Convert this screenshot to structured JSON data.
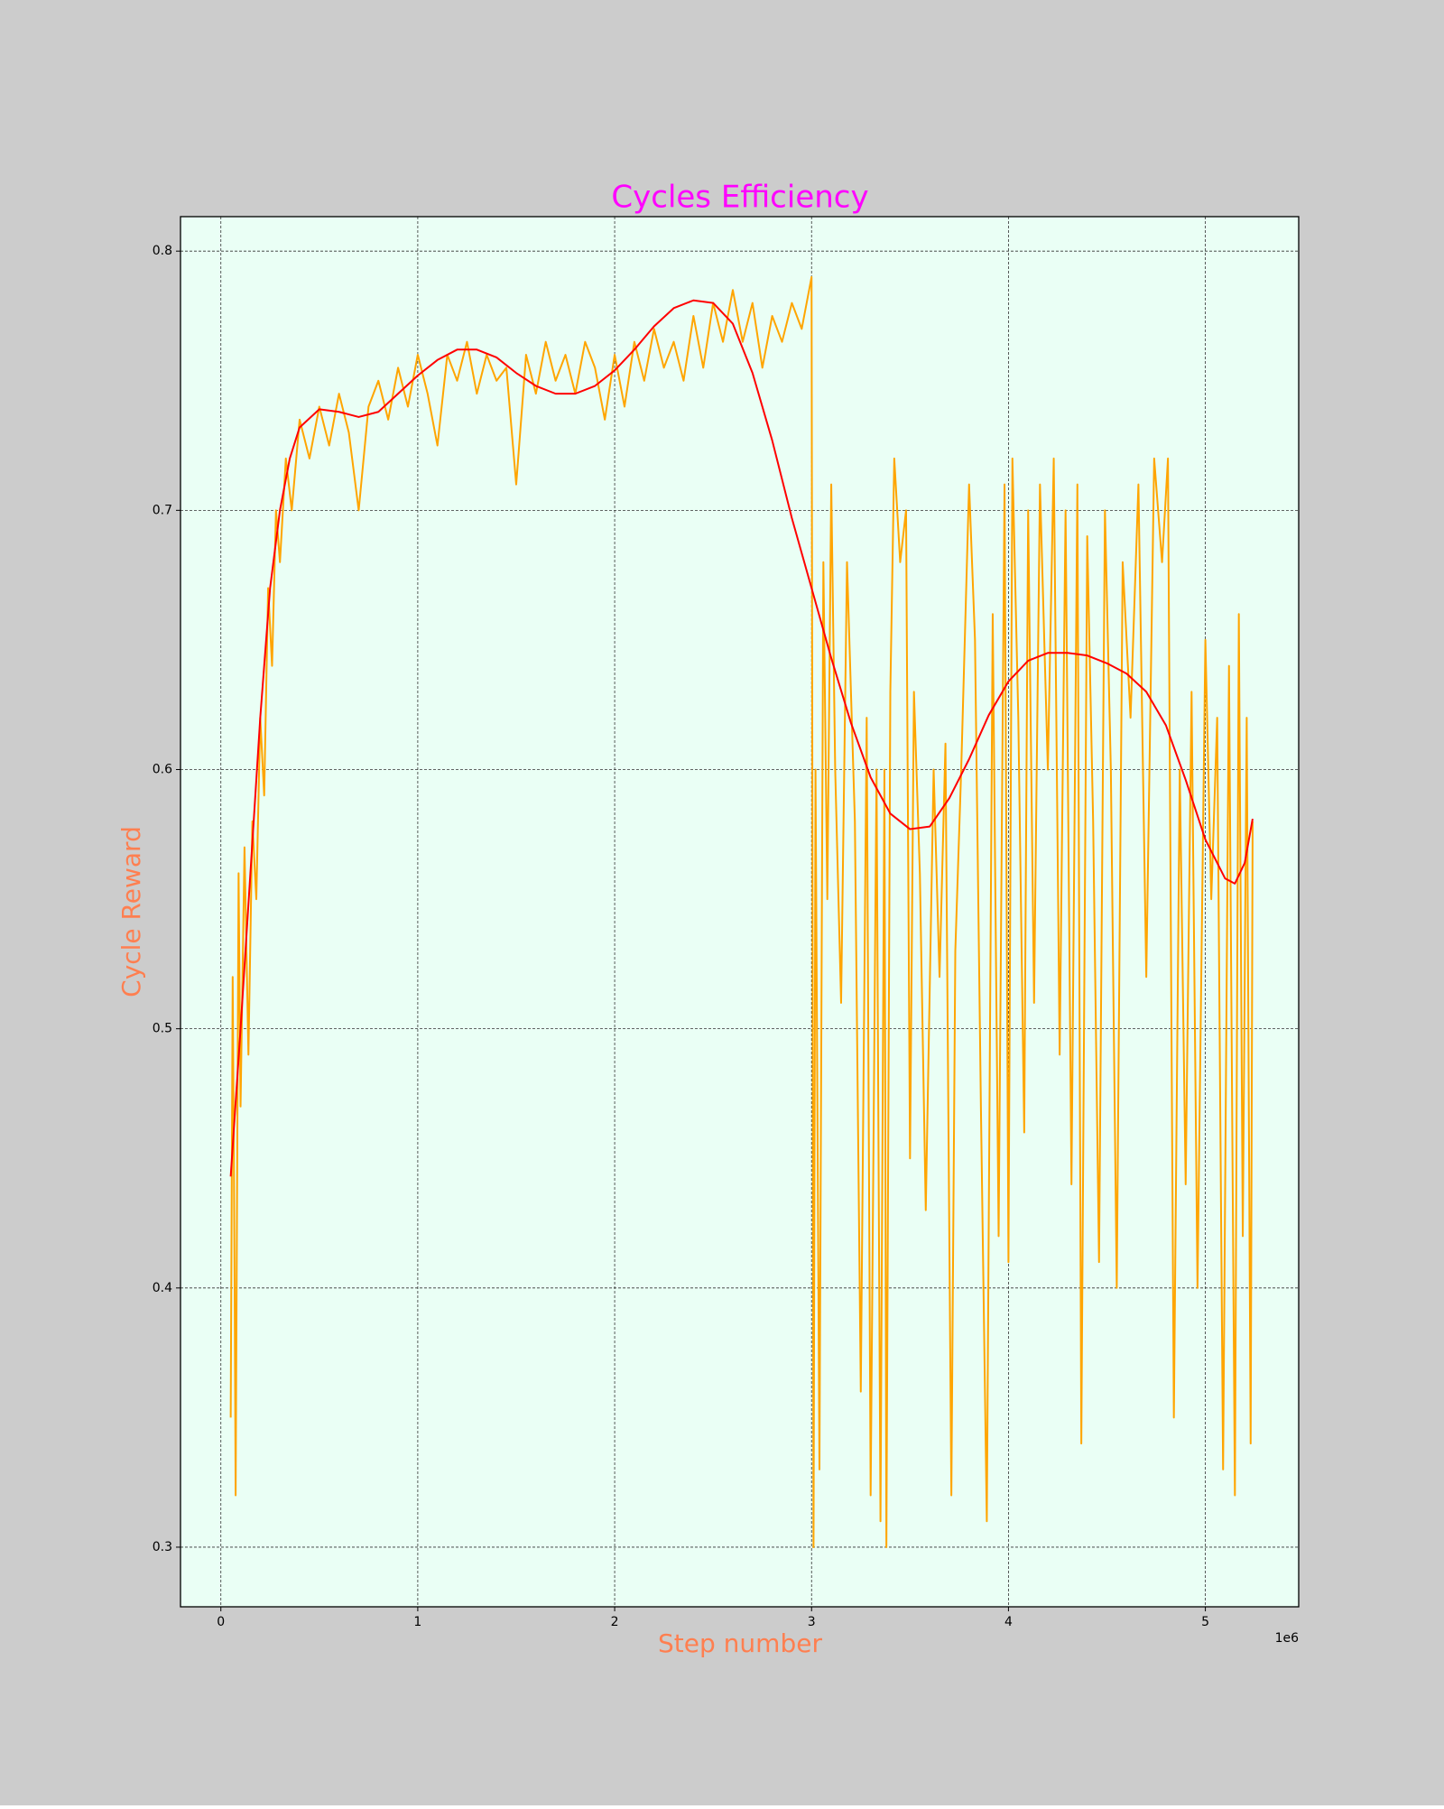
{
  "chart_data": {
    "type": "line",
    "title": "Cycles Efficiency",
    "x_label": "Step number",
    "y_label": "Cycle Reward",
    "x_offset_label": "1e6",
    "xlim": [
      -0.205,
      5.474
    ],
    "xticks": [
      0,
      1,
      2,
      3,
      4,
      5
    ],
    "ylim": [
      0.277,
      0.8133
    ],
    "yticks": [
      0.3,
      0.4,
      0.5,
      0.6,
      0.7,
      0.8
    ],
    "grid": true,
    "background": "#cccccc",
    "plot_background": "#eafff5",
    "title_color": "#ff00ff",
    "label_color": "#ff7f50",
    "series": [
      {
        "color": "#ffa500",
        "x": [
          0.05,
          0.06,
          0.07,
          0.075,
          0.09,
          0.1,
          0.12,
          0.14,
          0.16,
          0.18,
          0.2,
          0.22,
          0.24,
          0.26,
          0.28,
          0.3,
          0.33,
          0.36,
          0.4,
          0.45,
          0.5,
          0.55,
          0.6,
          0.65,
          0.7,
          0.75,
          0.8,
          0.85,
          0.9,
          0.95,
          1.0,
          1.05,
          1.1,
          1.15,
          1.2,
          1.25,
          1.3,
          1.35,
          1.4,
          1.45,
          1.5,
          1.55,
          1.6,
          1.65,
          1.7,
          1.75,
          1.8,
          1.85,
          1.9,
          1.95,
          2.0,
          2.05,
          2.1,
          2.15,
          2.2,
          2.25,
          2.3,
          2.35,
          2.4,
          2.45,
          2.5,
          2.55,
          2.6,
          2.65,
          2.7,
          2.75,
          2.8,
          2.85,
          2.9,
          2.95,
          3.0,
          3.01,
          3.02,
          3.04,
          3.06,
          3.08,
          3.1,
          3.12,
          3.15,
          3.18,
          3.22,
          3.25,
          3.28,
          3.3,
          3.33,
          3.35,
          3.37,
          3.38,
          3.4,
          3.42,
          3.45,
          3.48,
          3.5,
          3.52,
          3.55,
          3.58,
          3.62,
          3.65,
          3.68,
          3.71,
          3.73,
          3.76,
          3.8,
          3.83,
          3.86,
          3.89,
          3.92,
          3.95,
          3.98,
          4.0,
          4.02,
          4.05,
          4.08,
          4.1,
          4.13,
          4.16,
          4.2,
          4.23,
          4.26,
          4.29,
          4.32,
          4.35,
          4.37,
          4.4,
          4.43,
          4.46,
          4.49,
          4.52,
          4.55,
          4.58,
          4.62,
          4.66,
          4.7,
          4.74,
          4.78,
          4.81,
          4.84,
          4.87,
          4.9,
          4.93,
          4.96,
          5.0,
          5.03,
          5.06,
          5.09,
          5.12,
          5.15,
          5.17,
          5.19,
          5.21,
          5.23,
          5.24
        ],
        "values": [
          0.35,
          0.52,
          0.4,
          0.32,
          0.56,
          0.47,
          0.57,
          0.49,
          0.58,
          0.55,
          0.62,
          0.59,
          0.67,
          0.64,
          0.7,
          0.68,
          0.72,
          0.7,
          0.735,
          0.72,
          0.74,
          0.725,
          0.745,
          0.73,
          0.7,
          0.74,
          0.75,
          0.735,
          0.755,
          0.74,
          0.76,
          0.745,
          0.725,
          0.76,
          0.75,
          0.765,
          0.745,
          0.76,
          0.75,
          0.755,
          0.71,
          0.76,
          0.745,
          0.765,
          0.75,
          0.76,
          0.745,
          0.765,
          0.755,
          0.735,
          0.76,
          0.74,
          0.765,
          0.75,
          0.77,
          0.755,
          0.765,
          0.75,
          0.775,
          0.755,
          0.78,
          0.765,
          0.785,
          0.765,
          0.78,
          0.755,
          0.775,
          0.765,
          0.78,
          0.77,
          0.79,
          0.3,
          0.6,
          0.33,
          0.68,
          0.55,
          0.71,
          0.6,
          0.51,
          0.68,
          0.58,
          0.36,
          0.62,
          0.32,
          0.6,
          0.31,
          0.6,
          0.3,
          0.63,
          0.72,
          0.68,
          0.7,
          0.45,
          0.63,
          0.56,
          0.43,
          0.6,
          0.52,
          0.61,
          0.32,
          0.53,
          0.6,
          0.71,
          0.65,
          0.47,
          0.31,
          0.66,
          0.42,
          0.71,
          0.41,
          0.72,
          0.62,
          0.46,
          0.7,
          0.51,
          0.71,
          0.6,
          0.72,
          0.49,
          0.7,
          0.44,
          0.71,
          0.34,
          0.69,
          0.58,
          0.41,
          0.7,
          0.6,
          0.4,
          0.68,
          0.62,
          0.71,
          0.52,
          0.72,
          0.68,
          0.72,
          0.35,
          0.6,
          0.44,
          0.63,
          0.4,
          0.65,
          0.55,
          0.62,
          0.33,
          0.64,
          0.32,
          0.66,
          0.42,
          0.62,
          0.34,
          0.58
        ]
      },
      {
        "color": "#ff0000",
        "x": [
          0.05,
          0.1,
          0.15,
          0.2,
          0.25,
          0.3,
          0.35,
          0.4,
          0.5,
          0.6,
          0.7,
          0.8,
          0.9,
          1.0,
          1.1,
          1.2,
          1.3,
          1.4,
          1.5,
          1.6,
          1.7,
          1.8,
          1.9,
          2.0,
          2.1,
          2.2,
          2.3,
          2.4,
          2.5,
          2.6,
          2.7,
          2.8,
          2.9,
          3.0,
          3.1,
          3.2,
          3.3,
          3.4,
          3.5,
          3.6,
          3.7,
          3.8,
          3.9,
          4.0,
          4.1,
          4.2,
          4.3,
          4.4,
          4.5,
          4.6,
          4.7,
          4.8,
          4.9,
          5.0,
          5.1,
          5.15,
          5.2,
          5.24
        ],
        "values": [
          0.443,
          0.5,
          0.56,
          0.62,
          0.67,
          0.7,
          0.72,
          0.732,
          0.739,
          0.738,
          0.736,
          0.738,
          0.745,
          0.752,
          0.758,
          0.762,
          0.762,
          0.759,
          0.753,
          0.748,
          0.745,
          0.745,
          0.748,
          0.754,
          0.762,
          0.771,
          0.778,
          0.781,
          0.78,
          0.772,
          0.753,
          0.727,
          0.697,
          0.67,
          0.643,
          0.618,
          0.597,
          0.583,
          0.577,
          0.578,
          0.589,
          0.604,
          0.621,
          0.634,
          0.642,
          0.645,
          0.645,
          0.644,
          0.641,
          0.637,
          0.63,
          0.617,
          0.596,
          0.573,
          0.558,
          0.556,
          0.564,
          0.581
        ]
      }
    ]
  }
}
